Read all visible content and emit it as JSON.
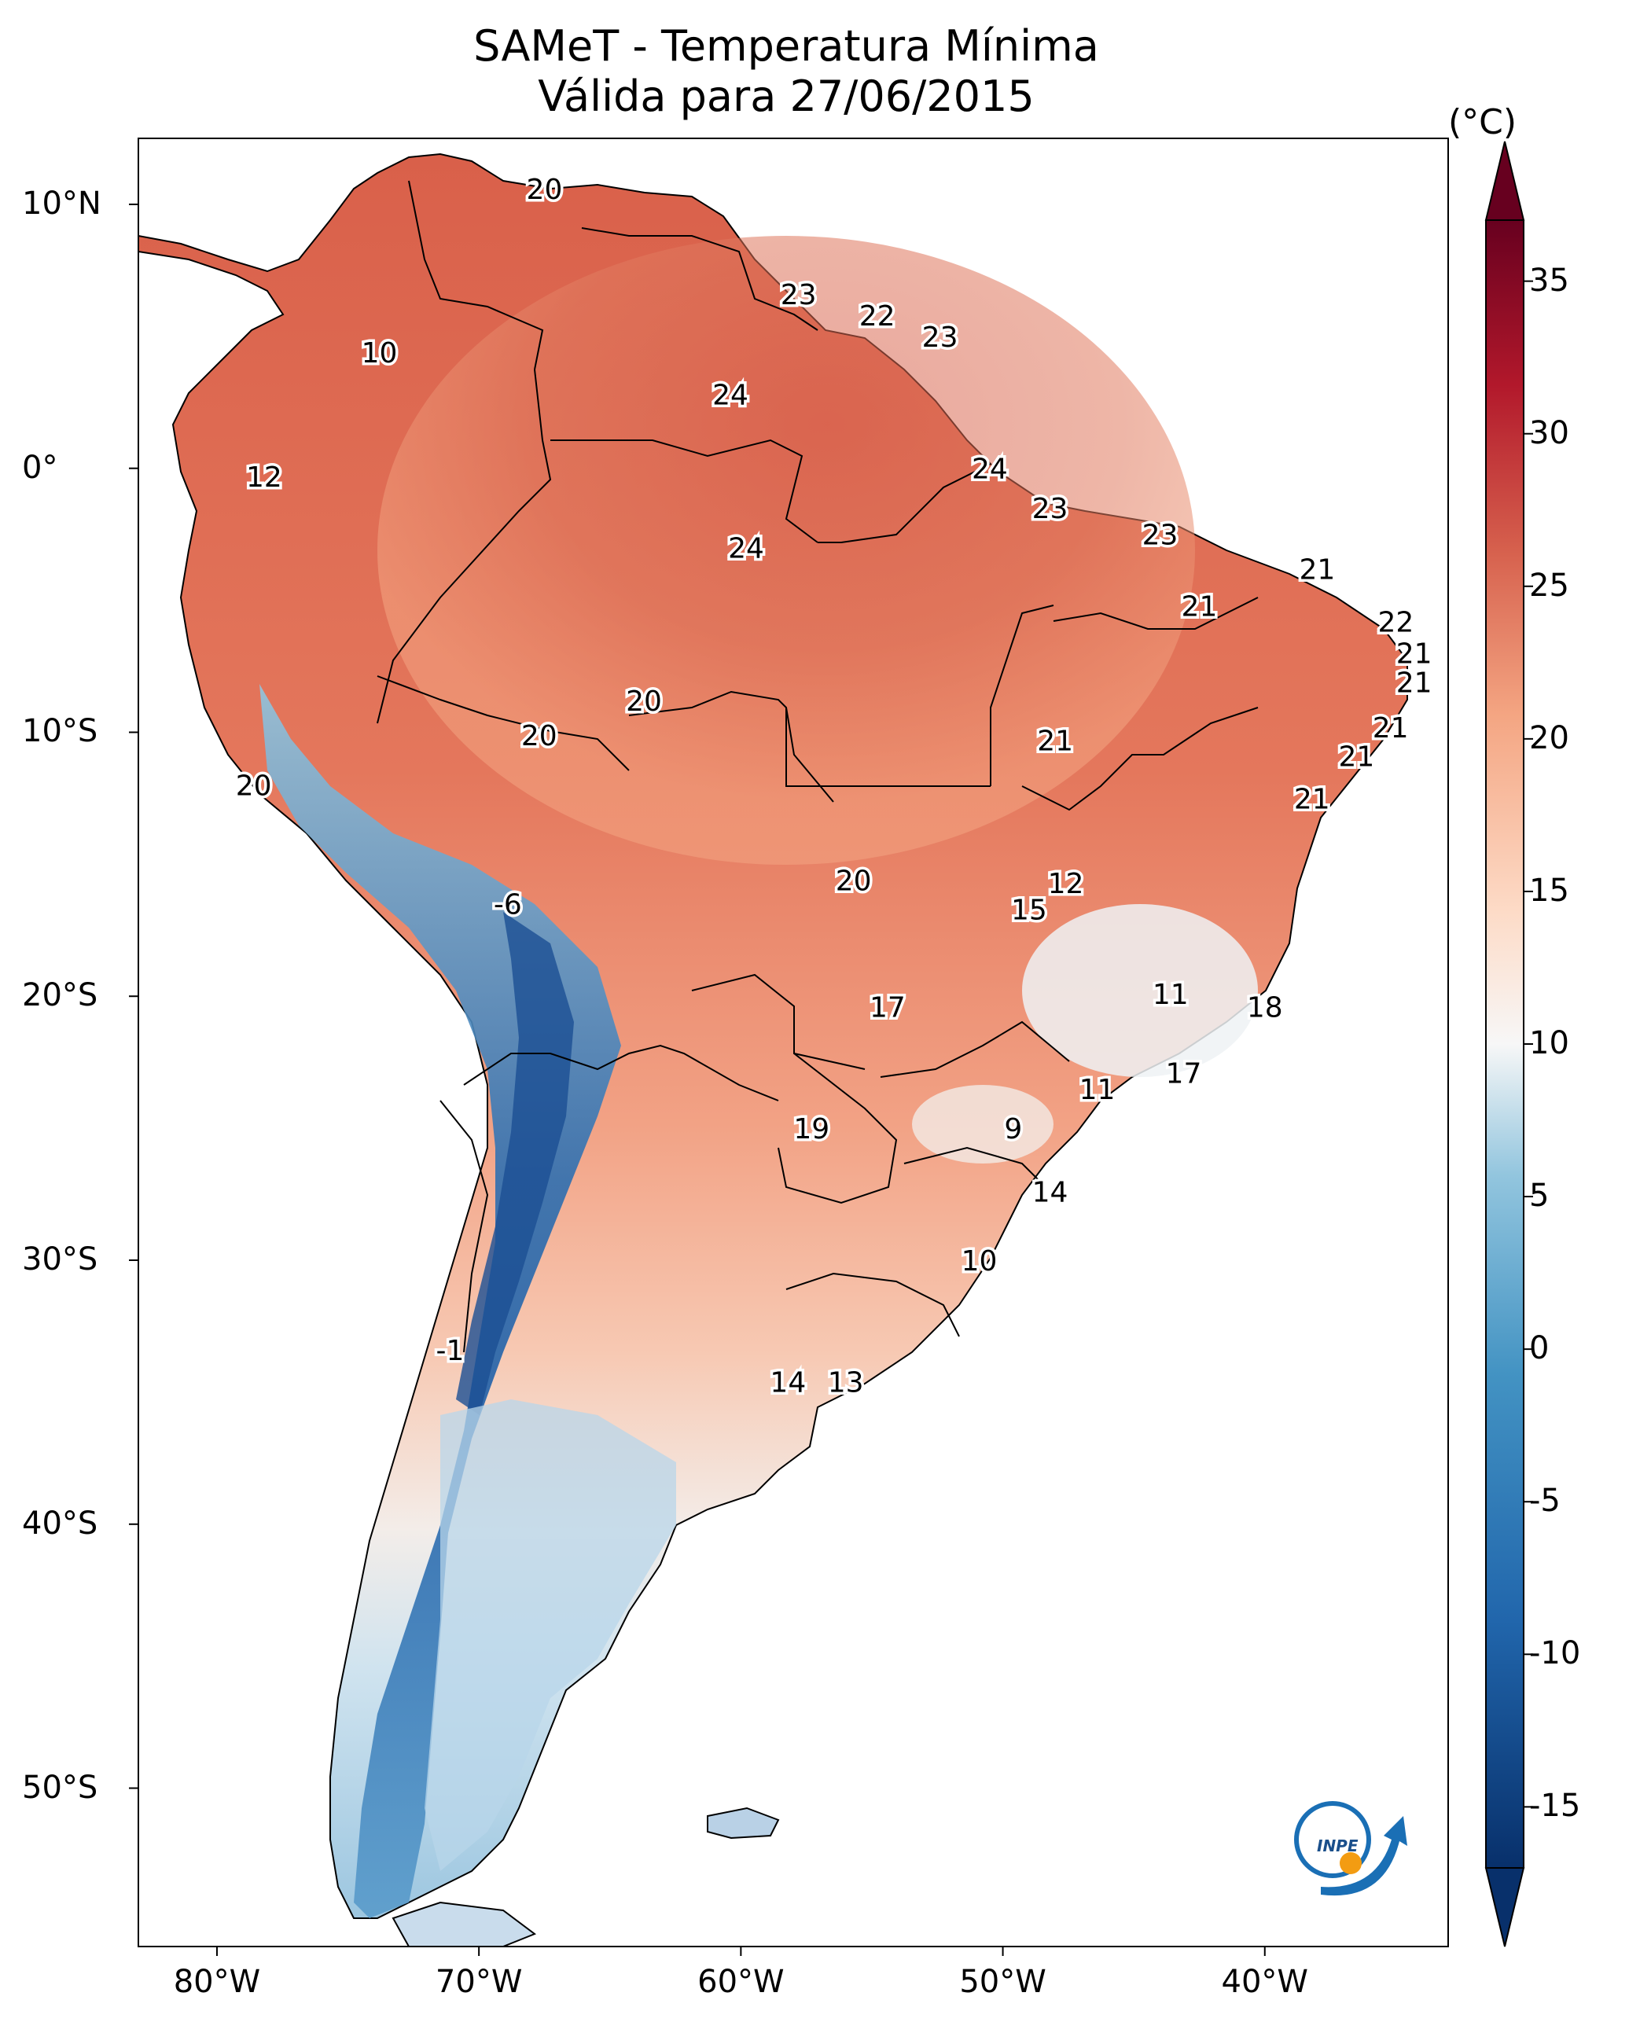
{
  "title": "SAMeT - Temperatura Mínima",
  "subtitle": "Válida para 27/06/2015",
  "colorbar": {
    "unit": "(°C)",
    "ticks": [
      "35",
      "30",
      "25",
      "20",
      "15",
      "10",
      "5",
      "0",
      "-5",
      "-10",
      "-15"
    ],
    "range": [
      -17,
      37
    ],
    "colors": [
      "#08306b",
      "#2166ac",
      "#4393c3",
      "#92c5de",
      "#f7f7f7",
      "#fddbc7",
      "#f4a582",
      "#d6604d",
      "#b2182b",
      "#67001f"
    ]
  },
  "map": {
    "lat_ticks": [
      "10°N",
      "0°",
      "10°S",
      "20°S",
      "30°S",
      "40°S",
      "50°S"
    ],
    "lon_ticks": [
      "80°W",
      "70°W",
      "60°W",
      "50°W",
      "40°W"
    ],
    "lat_range": [
      -56,
      12.5
    ],
    "lon_range": [
      -83,
      -33
    ],
    "annotations": [
      {
        "text": "20",
        "lon": -67.5,
        "lat": 10.6
      },
      {
        "text": "23",
        "lon": -57.8,
        "lat": 6.6
      },
      {
        "text": "22",
        "lon": -54.8,
        "lat": 5.8
      },
      {
        "text": "23",
        "lon": -52.4,
        "lat": 5.0
      },
      {
        "text": "10",
        "lon": -73.8,
        "lat": 4.4
      },
      {
        "text": "24",
        "lon": -60.4,
        "lat": 2.8
      },
      {
        "text": "12",
        "lon": -78.2,
        "lat": -0.3
      },
      {
        "text": "24",
        "lon": -50.5,
        "lat": 0.0
      },
      {
        "text": "23",
        "lon": -48.2,
        "lat": -1.5
      },
      {
        "text": "23",
        "lon": -44.0,
        "lat": -2.5
      },
      {
        "text": "24",
        "lon": -59.8,
        "lat": -3.0
      },
      {
        "text": "21",
        "lon": -38.0,
        "lat": -3.8
      },
      {
        "text": "21",
        "lon": -42.5,
        "lat": -5.2
      },
      {
        "text": "22",
        "lon": -35.0,
        "lat": -5.8
      },
      {
        "text": "21",
        "lon": -34.3,
        "lat": -7.0
      },
      {
        "text": "21",
        "lon": -34.3,
        "lat": -8.1
      },
      {
        "text": "20",
        "lon": -63.7,
        "lat": -8.8
      },
      {
        "text": "21",
        "lon": -35.2,
        "lat": -9.8
      },
      {
        "text": "20",
        "lon": -67.7,
        "lat": -10.1
      },
      {
        "text": "21",
        "lon": -48.0,
        "lat": -10.3
      },
      {
        "text": "21",
        "lon": -36.5,
        "lat": -10.9
      },
      {
        "text": "20",
        "lon": -78.6,
        "lat": -12.0
      },
      {
        "text": "21",
        "lon": -38.2,
        "lat": -12.5
      },
      {
        "text": "20",
        "lon": -55.7,
        "lat": -15.6
      },
      {
        "text": "12",
        "lon": -47.6,
        "lat": -15.7
      },
      {
        "text": "15",
        "lon": -49.0,
        "lat": -16.7
      },
      {
        "text": "-6",
        "lon": -68.9,
        "lat": -16.5
      },
      {
        "text": "11",
        "lon": -43.6,
        "lat": -19.9
      },
      {
        "text": "18",
        "lon": -40.0,
        "lat": -20.4
      },
      {
        "text": "17",
        "lon": -54.4,
        "lat": -20.4
      },
      {
        "text": "17",
        "lon": -43.1,
        "lat": -22.9
      },
      {
        "text": "11",
        "lon": -46.4,
        "lat": -23.5
      },
      {
        "text": "9",
        "lon": -49.6,
        "lat": -25.0
      },
      {
        "text": "19",
        "lon": -57.3,
        "lat": -25.0
      },
      {
        "text": "14",
        "lon": -48.2,
        "lat": -27.4
      },
      {
        "text": "10",
        "lon": -50.9,
        "lat": -30.0
      },
      {
        "text": "-1",
        "lon": -71.1,
        "lat": -33.4
      },
      {
        "text": "14",
        "lon": -58.2,
        "lat": -34.6
      },
      {
        "text": "13",
        "lon": -56.0,
        "lat": -34.6
      }
    ]
  },
  "logo": {
    "text": "INPE",
    "colors": [
      "#1a6fb5",
      "#f39c12"
    ]
  }
}
